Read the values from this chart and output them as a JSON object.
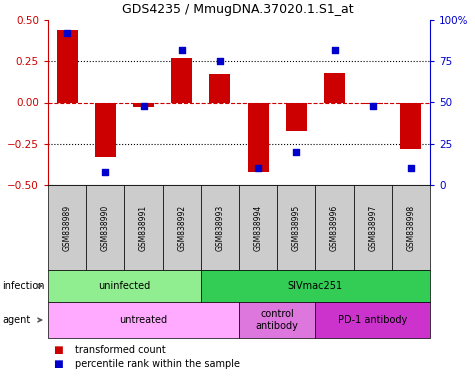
{
  "title": "GDS4235 / MmugDNA.37020.1.S1_at",
  "samples": [
    "GSM838989",
    "GSM838990",
    "GSM838991",
    "GSM838992",
    "GSM838993",
    "GSM838994",
    "GSM838995",
    "GSM838996",
    "GSM838997",
    "GSM838998"
  ],
  "bar_values": [
    0.44,
    -0.33,
    -0.03,
    0.27,
    0.175,
    -0.42,
    -0.17,
    0.18,
    -0.01,
    -0.28
  ],
  "dot_values": [
    92,
    8,
    48,
    82,
    75,
    10,
    20,
    82,
    48,
    10
  ],
  "bar_color": "#cc0000",
  "dot_color": "#0000cc",
  "ylim": [
    -0.5,
    0.5
  ],
  "y2lim": [
    0,
    100
  ],
  "yticks": [
    -0.5,
    -0.25,
    0,
    0.25,
    0.5
  ],
  "y2ticks": [
    0,
    25,
    50,
    75,
    100
  ],
  "y2ticklabels": [
    "0",
    "25",
    "50",
    "75",
    "100%"
  ],
  "hlines": [
    -0.25,
    0,
    0.25
  ],
  "infection_groups": [
    {
      "label": "uninfected",
      "start": 0,
      "end": 3,
      "color": "#90ee90"
    },
    {
      "label": "SIVmac251",
      "start": 4,
      "end": 9,
      "color": "#33cc55"
    }
  ],
  "agent_groups": [
    {
      "label": "untreated",
      "start": 0,
      "end": 4,
      "color": "#ffaaff"
    },
    {
      "label": "control\nantibody",
      "start": 5,
      "end": 6,
      "color": "#dd77dd"
    },
    {
      "label": "PD-1 antibody",
      "start": 7,
      "end": 9,
      "color": "#cc33cc"
    }
  ],
  "legend_items": [
    {
      "color": "#cc0000",
      "label": "transformed count"
    },
    {
      "color": "#0000cc",
      "label": "percentile rank within the sample"
    }
  ],
  "bg_color": "#ffffff",
  "sample_bg_color": "#cccccc",
  "tick_color_left": "#cc0000",
  "tick_color_right": "#0000cc"
}
